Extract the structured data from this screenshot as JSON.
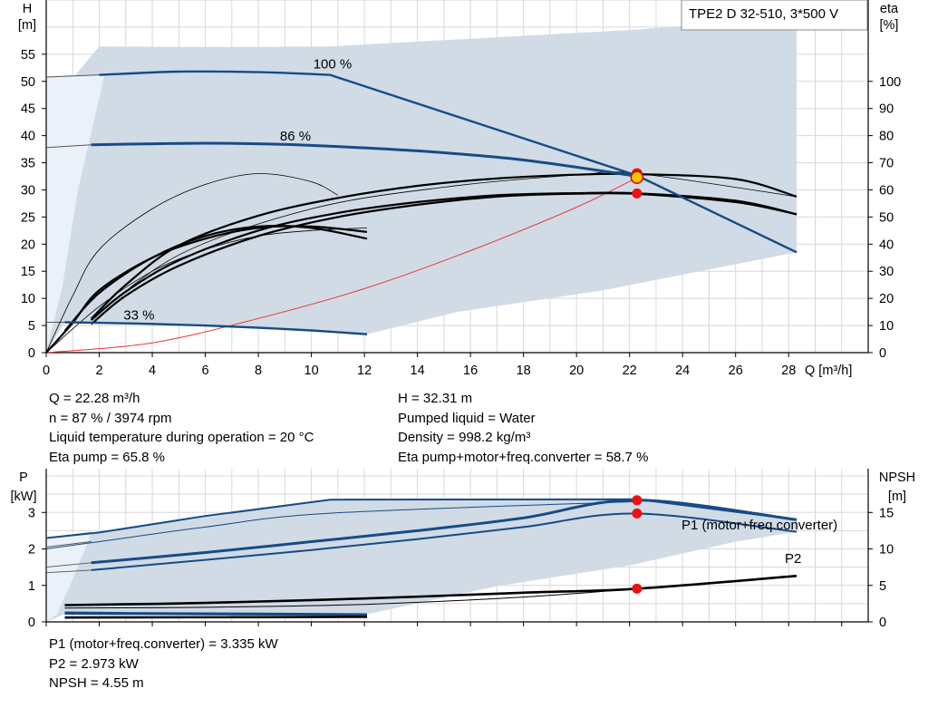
{
  "title_box": "TPE2 D 32-510, 3*500 V",
  "chart_data": [
    {
      "type": "line",
      "name": "head",
      "y_left_label": [
        "H",
        "[m]"
      ],
      "y_right_label": [
        "eta",
        "[%]"
      ],
      "x_label": "Q [m³/h]",
      "x_ticks": [
        "0",
        "2",
        "4",
        "6",
        "8",
        "10",
        "12",
        "14",
        "16",
        "18",
        "20",
        "22",
        "24",
        "26",
        "28"
      ],
      "y_left_ticks": [
        "0",
        "5",
        "10",
        "15",
        "20",
        "25",
        "30",
        "35",
        "40",
        "45",
        "50",
        "55"
      ],
      "y_right_ticks": [
        "0",
        "10",
        "20",
        "30",
        "40",
        "50",
        "60",
        "70",
        "80",
        "90",
        "100"
      ],
      "xlim": [
        0,
        31
      ],
      "ylim": [
        0,
        65
      ],
      "eta_lim": [
        0,
        130
      ],
      "grid": true,
      "speed_labels": [
        "100 %",
        "86 %",
        "33 %"
      ],
      "colors": {
        "speed": "#174b86",
        "area": "#d0dbe6",
        "area_light": "#eaf1f9",
        "eta": "#000000",
        "system": "#ee3333",
        "marker": "#ee1111"
      },
      "head_curves": [
        {
          "label": "100 %",
          "x": [
            2,
            5,
            8,
            10.7,
            22.3,
            28.3
          ],
          "y": [
            51.2,
            51.8,
            51.7,
            51.2,
            32.6,
            18.5
          ]
        },
        {
          "label": "86 %",
          "x": [
            1.7,
            4,
            6,
            8,
            10,
            14,
            18,
            22.3
          ],
          "y": [
            38.3,
            38.5,
            38.6,
            38.5,
            38.2,
            37.2,
            35.5,
            32.5
          ]
        },
        {
          "label": "33 %",
          "x": [
            0.7,
            2,
            4,
            6,
            8,
            10,
            12.1
          ],
          "y": [
            5.6,
            5.5,
            5.3,
            5.0,
            4.6,
            4.1,
            3.4
          ]
        }
      ],
      "eta_curves": [
        {
          "x": [
            1.7,
            3,
            5,
            8,
            11,
            14,
            17,
            20,
            22.3,
            26,
            28.3
          ],
          "y": [
            12,
            22.5,
            34,
            45,
            51.5,
            55.5,
            58,
            58.8,
            58.7,
            56,
            51
          ]
        },
        {
          "x": [
            1.7,
            3,
            5,
            8,
            11,
            14,
            17,
            20,
            22.3,
            26,
            28.3
          ],
          "y": [
            10.5,
            21,
            32,
            43,
            50,
            54.5,
            57.5,
            58.6,
            58.5,
            55.5,
            51
          ]
        },
        {
          "x": [
            1.7,
            3,
            5,
            8,
            11,
            14,
            17,
            20,
            22.3,
            26,
            28.3
          ],
          "y": [
            12.5,
            25,
            39.5,
            50.5,
            57,
            61.5,
            64.2,
            65.6,
            65.8,
            64,
            57.5
          ]
        },
        {
          "x": [
            0.7,
            2,
            4,
            6,
            8,
            10,
            12.1
          ],
          "y": [
            8,
            22,
            35,
            43,
            46.5,
            46,
            42
          ]
        },
        {
          "x": [
            0,
            1,
            2,
            4,
            6,
            8,
            10,
            12.1
          ],
          "y": [
            0,
            11,
            23,
            35,
            42,
            46,
            46.5,
            44.5
          ]
        }
      ],
      "thin_eta_curves": [
        {
          "x": [
            0,
            1,
            2,
            4,
            6,
            8,
            10,
            11
          ],
          "y": [
            0,
            21,
            38,
            53,
            62,
            66,
            63,
            58
          ]
        },
        {
          "x": [
            0,
            2,
            4,
            6,
            8,
            10,
            12.1
          ],
          "y": [
            0,
            17,
            30,
            38,
            43,
            45,
            46
          ]
        },
        {
          "x": [
            1.7,
            5,
            10,
            15,
            20,
            22.3,
            28.3
          ],
          "y": [
            12,
            36,
            53,
            61,
            65.5,
            66,
            57.5
          ]
        }
      ],
      "system_curve": {
        "x": [
          0,
          4,
          8,
          12,
          16,
          20,
          22.3
        ],
        "y": [
          0,
          1.8,
          6.3,
          11.8,
          18.8,
          26.8,
          32.3
        ]
      },
      "duty_points": [
        {
          "x": 22.28,
          "y": 32.31,
          "series": "H"
        },
        {
          "x": 22.28,
          "y": 33.0,
          "series": "H"
        },
        {
          "x": 22.28,
          "y": 29.3,
          "series": "eta"
        }
      ]
    },
    {
      "type": "line",
      "name": "power",
      "y_left_label": [
        "P",
        "[kW]"
      ],
      "y_right_label": [
        "NPSH",
        "[m]"
      ],
      "y_left_ticks": [
        "0",
        "1",
        "2",
        "3"
      ],
      "y_right_ticks": [
        "0",
        "5",
        "10",
        "15"
      ],
      "ylim": [
        0,
        4.2
      ],
      "npsh_lim": [
        0,
        21
      ],
      "series_labels": [
        "P1 (motor+freq.converter)",
        "P2"
      ],
      "p1_curves": [
        {
          "x": [
            1.7,
            6,
            10,
            14,
            18,
            22.3,
            28.3
          ],
          "y": [
            1.62,
            1.9,
            2.2,
            2.5,
            2.85,
            3.34,
            2.8
          ]
        },
        {
          "x": [
            0,
            2,
            6,
            10.7,
            22.3,
            28.3
          ],
          "y": [
            2.3,
            2.45,
            2.9,
            3.35,
            3.36,
            2.8
          ]
        },
        {
          "x": [
            0.7,
            4,
            8,
            12.1
          ],
          "y": [
            0.26,
            0.24,
            0.23,
            0.21
          ]
        }
      ],
      "p2_curves": [
        {
          "x": [
            1.7,
            6,
            10,
            14,
            18,
            22.3,
            28.3
          ],
          "y": [
            1.42,
            1.7,
            1.97,
            2.27,
            2.6,
            2.97,
            2.47
          ]
        },
        {
          "x": [
            0,
            2,
            6,
            10.7,
            22.3
          ],
          "y": [
            2.0,
            2.2,
            2.6,
            2.98,
            3.3
          ]
        },
        {
          "x": [
            0.7,
            4,
            8,
            12.1
          ],
          "y": [
            0.22,
            0.21,
            0.2,
            0.19
          ]
        }
      ],
      "npsh_curves": [
        {
          "x": [
            0.7,
            6,
            12,
            18,
            22.3,
            28.3
          ],
          "y": [
            2.3,
            2.6,
            3.2,
            4.0,
            4.55,
            6.3
          ]
        },
        {
          "x": [
            0.7,
            6,
            12,
            18,
            22.3
          ],
          "y": [
            1.9,
            2.0,
            2.4,
            3.4,
            4.55
          ]
        },
        {
          "x": [
            0.7,
            4,
            8,
            12.1
          ],
          "y": [
            0.6,
            0.62,
            0.65,
            0.7
          ]
        }
      ],
      "duty_points": [
        {
          "x": 22.28,
          "y": 3.335,
          "series": "P1"
        },
        {
          "x": 22.28,
          "y": 2.973,
          "series": "P2"
        },
        {
          "x": 22.28,
          "y": 0.91,
          "series": "NPSH"
        }
      ]
    }
  ],
  "readouts_top_left": [
    "Q = 22.28 m³/h",
    "n = 87 % / 3974 rpm",
    "Liquid temperature during operation = 20 °C",
    "Eta pump = 65.8 %"
  ],
  "readouts_top_right": [
    "H = 32.31 m",
    "Pumped liquid = Water",
    "Density = 998.2 kg/m³",
    "Eta pump+motor+freq.converter = 58.7 %"
  ],
  "readouts_bottom": [
    "P1 (motor+freq.converter) = 3.335 kW",
    "P2 = 2.973 kW",
    "NPSH = 4.55 m"
  ]
}
